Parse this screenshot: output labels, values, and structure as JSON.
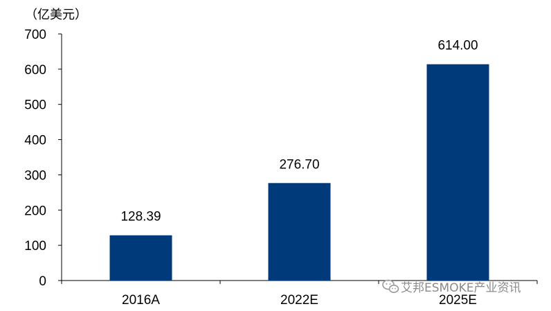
{
  "chart_data": {
    "type": "bar",
    "unit_label": "（亿美元）",
    "categories": [
      "2016A",
      "2022E",
      "2025E"
    ],
    "values": [
      128.39,
      276.7,
      614.0
    ],
    "data_labels": [
      "128.39",
      "276.70",
      "614.00"
    ],
    "ylim": [
      0,
      700
    ],
    "yticks": [
      0,
      100,
      200,
      300,
      400,
      500,
      600,
      700
    ],
    "bar_color": "#003a7a",
    "grid": false,
    "legend": "none"
  },
  "watermark": {
    "text": "艾邦ESMOKE产业资讯",
    "icon": "wechat-icon"
  }
}
